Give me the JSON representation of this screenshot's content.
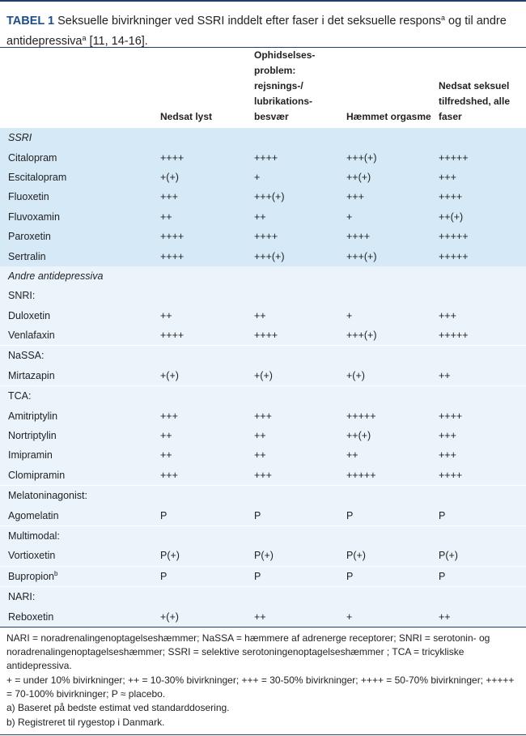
{
  "caption": {
    "label": "TABEL 1",
    "text_1": "Seksuelle bivirkninger ved SSRI inddelt efter faser i det seksuelle respons",
    "sup_1": "a",
    "text_2": " og til andre antidepressiva",
    "sup_2": "a",
    "text_3": " [11, 14-16]."
  },
  "headers": {
    "col0": "",
    "col1": "Nedsat lyst",
    "col2": "Ophidselses-problem: rejsnings-/ lubrikations-besvær",
    "col3": "Hæmmet orgasme",
    "col4": "Nedsat seksuel tilfredshed, alle faser"
  },
  "sections": {
    "ssri": "SSRI",
    "other": "Andre antidepressiva"
  },
  "rows": [
    {
      "name": "Citalopram",
      "sup": "",
      "v": [
        "++++",
        "++++",
        "+++(+)",
        "+++++"
      ]
    },
    {
      "name": "Escitalopram",
      "sup": "",
      "v": [
        "+(+)",
        "+",
        "++(+)",
        "+++"
      ]
    },
    {
      "name": "Fluoxetin",
      "sup": "",
      "v": [
        "+++",
        "+++(+)",
        "+++",
        "++++"
      ]
    },
    {
      "name": "Fluvoxamin",
      "sup": "",
      "v": [
        "++",
        "++",
        "+",
        "++(+)"
      ]
    },
    {
      "name": "Paroxetin",
      "sup": "",
      "v": [
        "++++",
        "++++",
        "++++",
        "+++++"
      ]
    },
    {
      "name": "Sertralin",
      "sup": "",
      "v": [
        "++++",
        "+++(+)",
        "+++(+)",
        "+++++"
      ]
    },
    {
      "name": "SNRI:",
      "sup": "",
      "v": [
        "",
        "",
        "",
        ""
      ]
    },
    {
      "name": "Duloxetin",
      "sup": "",
      "v": [
        "++",
        "++",
        "+",
        "+++"
      ]
    },
    {
      "name": "Venlafaxin",
      "sup": "",
      "v": [
        "++++",
        "++++",
        "+++(+)",
        "+++++"
      ]
    },
    {
      "name": "NaSSA:",
      "sup": "",
      "v": [
        "",
        "",
        "",
        ""
      ]
    },
    {
      "name": "Mirtazapin",
      "sup": "",
      "v": [
        "+(+)",
        "+(+)",
        "+(+)",
        "++"
      ]
    },
    {
      "name": "TCA:",
      "sup": "",
      "v": [
        "",
        "",
        "",
        ""
      ]
    },
    {
      "name": "Amitriptylin",
      "sup": "",
      "v": [
        "+++",
        "+++",
        "+++++",
        "++++"
      ]
    },
    {
      "name": "Nortriptylin",
      "sup": "",
      "v": [
        "++",
        "++",
        "++(+)",
        "+++"
      ]
    },
    {
      "name": "Imipramin",
      "sup": "",
      "v": [
        "++",
        "++",
        "++",
        "+++"
      ]
    },
    {
      "name": "Clomipramin",
      "sup": "",
      "v": [
        "+++",
        "+++",
        "+++++",
        "++++"
      ]
    },
    {
      "name": "Melatoninagonist:",
      "sup": "",
      "v": [
        "",
        "",
        "",
        ""
      ]
    },
    {
      "name": "Agomelatin",
      "sup": "",
      "v": [
        "P",
        "P",
        "P",
        "P"
      ]
    },
    {
      "name": "Multimodal:",
      "sup": "",
      "v": [
        "",
        "",
        "",
        ""
      ]
    },
    {
      "name": "Vortioxetin",
      "sup": "",
      "v": [
        "P(+)",
        "P(+)",
        "P(+)",
        "P(+)"
      ]
    },
    {
      "name": "Bupropion",
      "sup": "b",
      "v": [
        "P",
        "P",
        "P",
        "P"
      ]
    },
    {
      "name": "NARI:",
      "sup": "",
      "v": [
        "",
        "",
        "",
        ""
      ]
    },
    {
      "name": "Reboxetin",
      "sup": "",
      "v": [
        "+(+)",
        "++",
        "+",
        "++"
      ]
    }
  ],
  "notes": {
    "abbrev": "NARI = noradrenalingenoptagelseshæmmer; NaSSA = hæmmere af adrenerge receptorer; SNRI = serotonin- og noradrenalingenoptagelseshæmmer; SSRI = selektive serotoningenoptagelseshæmmer ; TCA = tricykliske antidepressiva.",
    "scale": "+ = under 10% bivirkninger; ++ = 10-30% bivirkninger; +++ = 30-50% bivirkninger; ++++ = 50-70% bivirkninger; +++++ = 70-100% bivirkninger; P ≈ placebo.",
    "a": "a) Baseret på bedste estimat ved standarddosering.",
    "b": "b) Registreret til rygestop i Danmark."
  }
}
